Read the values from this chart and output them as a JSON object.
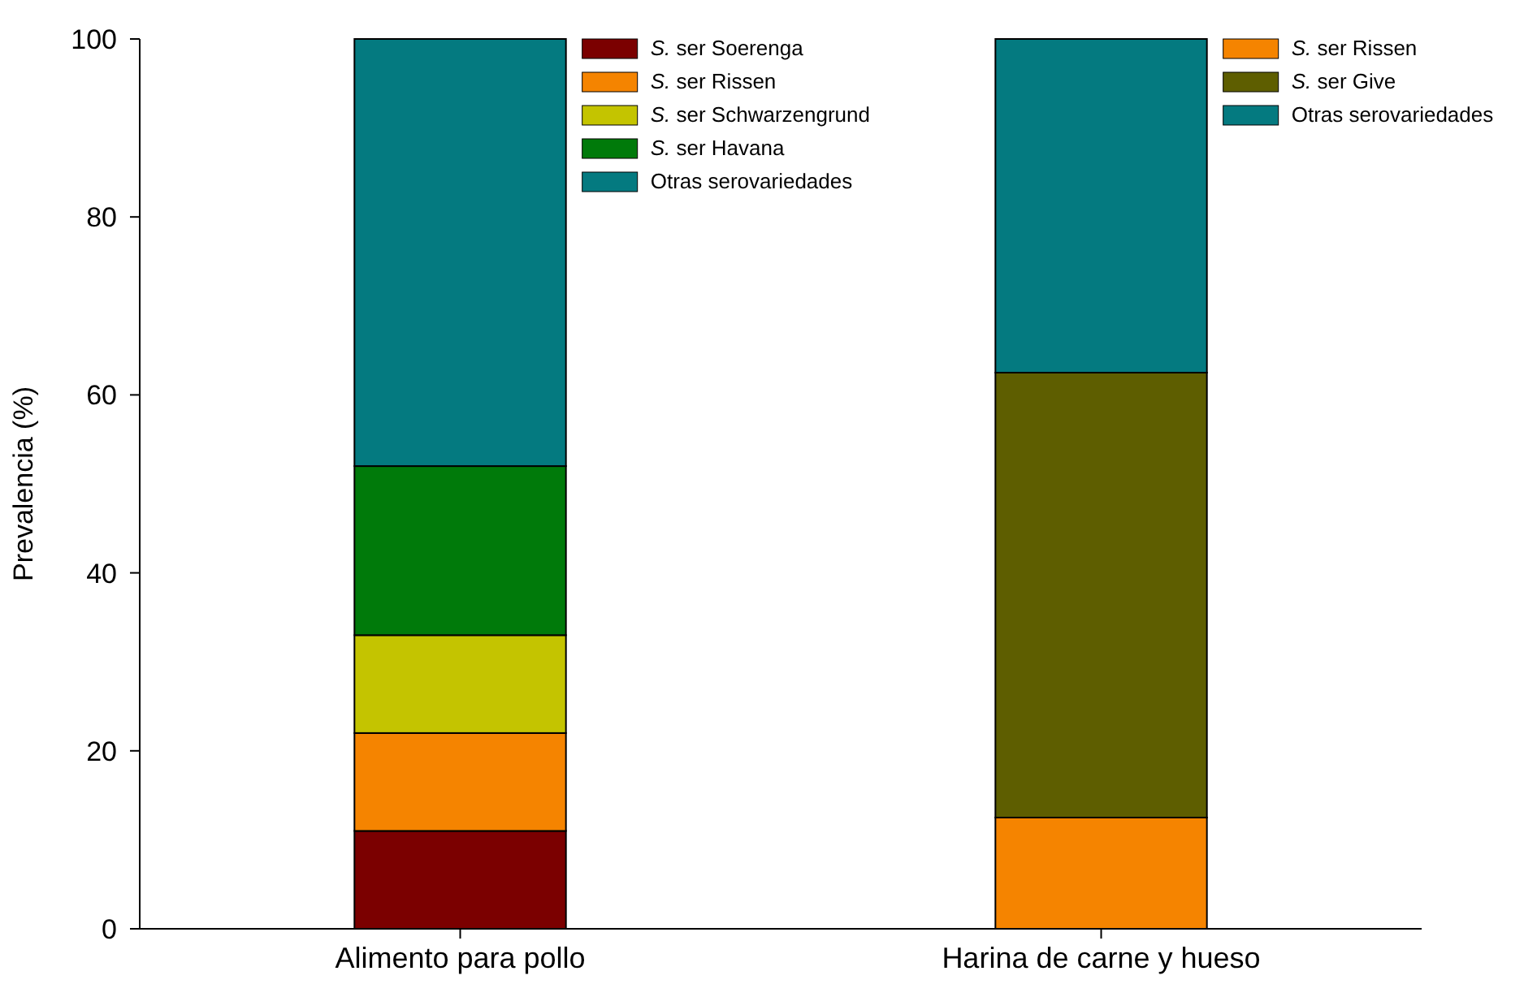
{
  "chart_data": {
    "type": "bar",
    "stacked": true,
    "ylabel": "Prevalencia (%)",
    "categories": [
      "Alimento para pollo",
      "Harina de carne y hueso"
    ],
    "series": [
      {
        "name": "S. ser Soerenga",
        "color": "#7b0000",
        "values": [
          11,
          null
        ]
      },
      {
        "name": "S. ser Rissen",
        "color": "#f58400",
        "values": [
          11,
          12.5
        ]
      },
      {
        "name": "S. ser Schwarzengrund",
        "color": "#c4c400",
        "values": [
          11,
          null
        ]
      },
      {
        "name": "S. ser Havana",
        "color": "#007a0a",
        "values": [
          19,
          null
        ]
      },
      {
        "name": "S. ser Give",
        "color": "#5e5e00",
        "values": [
          null,
          50
        ]
      },
      {
        "name": "Otras serovariedades",
        "color": "#047a80",
        "values": [
          48,
          37.5
        ]
      }
    ],
    "ylim": [
      0,
      100
    ],
    "yticks": [
      0,
      20,
      40,
      60,
      80,
      100
    ],
    "legend": "top right"
  }
}
